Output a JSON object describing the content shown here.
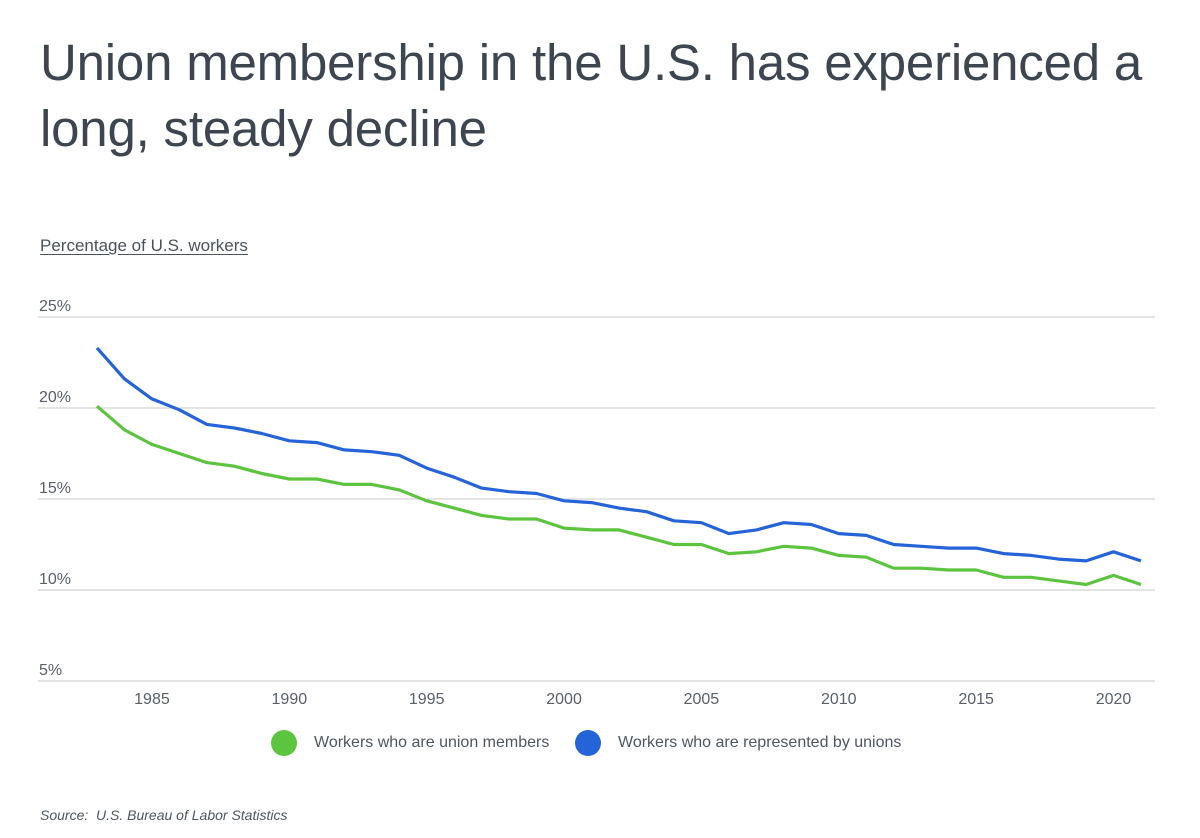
{
  "title": "Union membership in the U.S. has experienced a long, steady decline",
  "subtitle": "Percentage of U.S. workers",
  "source": "Source:  U.S. Bureau of Labor Statistics",
  "colors": {
    "members": "#5dc43f",
    "represented": "#2563d8",
    "grid": "#dcdcdc",
    "text": "#3d4650"
  },
  "chart_data": {
    "type": "line",
    "title": "Union membership in the U.S. has experienced a long, steady decline",
    "ylabel": "Percentage of U.S. workers",
    "xlabel": "",
    "ylim": [
      5,
      25
    ],
    "xlim": [
      1983,
      2021
    ],
    "yticks": [
      25,
      20,
      15,
      10,
      5
    ],
    "ytick_labels": [
      "25%",
      "20%",
      "15%",
      "10%",
      "5%"
    ],
    "xticks": [
      1985,
      1990,
      1995,
      2000,
      2005,
      2010,
      2015,
      2020
    ],
    "xtick_labels": [
      "1985",
      "1990",
      "1995",
      "2000",
      "2005",
      "2010",
      "2015",
      "2020"
    ],
    "grid": true,
    "legend_position": "bottom-center",
    "x": [
      1983,
      1984,
      1985,
      1986,
      1987,
      1988,
      1989,
      1990,
      1991,
      1992,
      1993,
      1994,
      1995,
      1996,
      1997,
      1998,
      1999,
      2000,
      2001,
      2002,
      2003,
      2004,
      2005,
      2006,
      2007,
      2008,
      2009,
      2010,
      2011,
      2012,
      2013,
      2014,
      2015,
      2016,
      2017,
      2018,
      2019,
      2020,
      2021
    ],
    "series": [
      {
        "name": "Workers who are union members",
        "color": "#5dc43f",
        "values": [
          20.1,
          18.8,
          18.0,
          17.5,
          17.0,
          16.8,
          16.4,
          16.1,
          16.1,
          15.8,
          15.8,
          15.5,
          14.9,
          14.5,
          14.1,
          13.9,
          13.9,
          13.4,
          13.3,
          13.3,
          12.9,
          12.5,
          12.5,
          12.0,
          12.1,
          12.4,
          12.3,
          11.9,
          11.8,
          11.2,
          11.2,
          11.1,
          11.1,
          10.7,
          10.7,
          10.5,
          10.3,
          10.8,
          10.3
        ]
      },
      {
        "name": "Workers who are represented by unions",
        "color": "#2563d8",
        "values": [
          23.3,
          21.6,
          20.5,
          19.9,
          19.1,
          18.9,
          18.6,
          18.2,
          18.1,
          17.7,
          17.6,
          17.4,
          16.7,
          16.2,
          15.6,
          15.4,
          15.3,
          14.9,
          14.8,
          14.5,
          14.3,
          13.8,
          13.7,
          13.1,
          13.3,
          13.7,
          13.6,
          13.1,
          13.0,
          12.5,
          12.4,
          12.3,
          12.3,
          12.0,
          11.9,
          11.7,
          11.6,
          12.1,
          11.6
        ]
      }
    ]
  }
}
